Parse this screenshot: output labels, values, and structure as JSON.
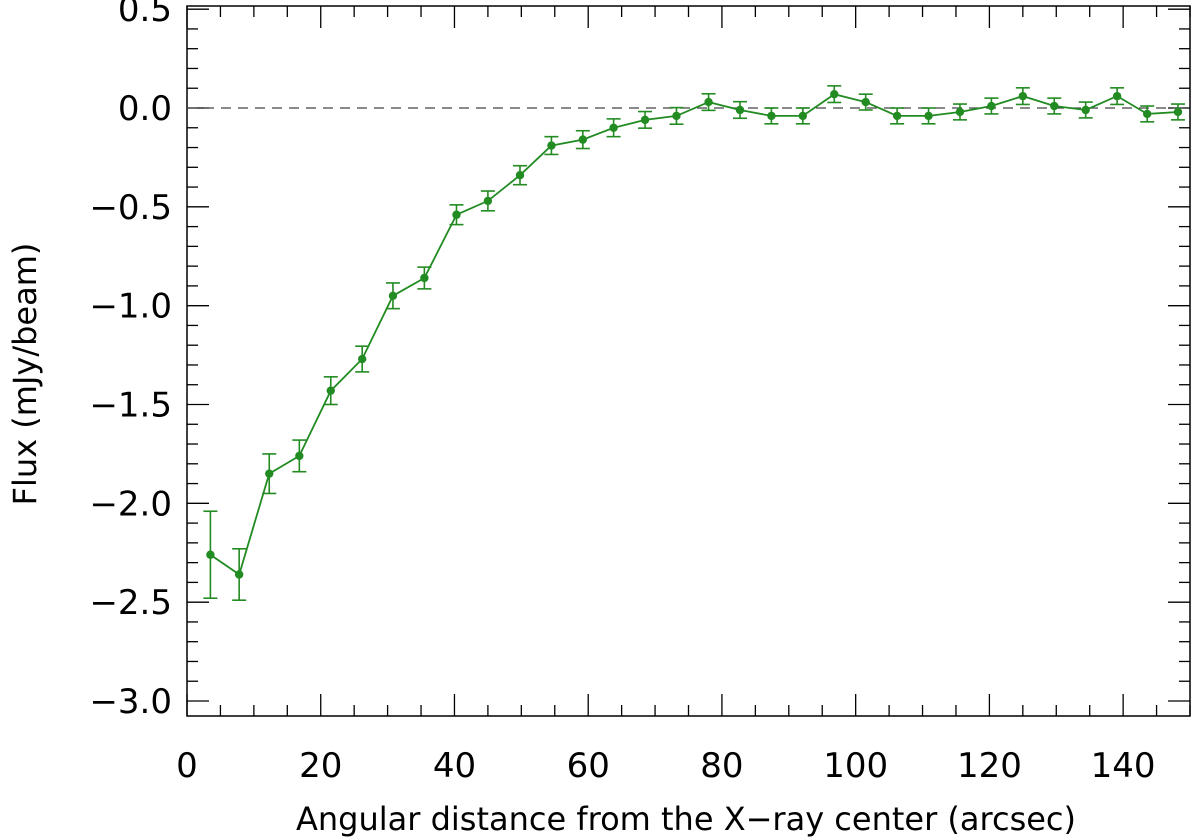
{
  "chart_data": {
    "type": "line",
    "title": "",
    "xlabel": "Angular distance from the X−ray center (arcsec)",
    "ylabel": "Flux (mJy/beam)",
    "xlim": [
      0,
      150
    ],
    "ylim": [
      -3.0,
      0.6
    ],
    "x_ticks": [
      0,
      20,
      40,
      60,
      80,
      100,
      120,
      140
    ],
    "x_tick_labels": [
      "0",
      "20",
      "40",
      "60",
      "80",
      "100",
      "120",
      "140"
    ],
    "y_ticks": [
      0.5,
      0.0,
      -0.5,
      -1.0,
      -1.5,
      -2.0,
      -2.5,
      -3.0
    ],
    "y_tick_labels": [
      "0.5",
      "0.0",
      "−0.5",
      "−1.0",
      "−1.5",
      "−2.0",
      "−2.5",
      "−3.0"
    ],
    "reference_line_y": 0.0,
    "grid": false,
    "series_color": "#228B22",
    "series": [
      {
        "x": [
          3.5,
          7.8,
          12.3,
          16.8,
          21.5,
          26.2,
          30.8,
          35.5,
          40.3,
          45.0,
          49.8,
          54.5,
          59.2,
          63.8,
          68.5,
          73.2,
          78.0,
          82.7,
          87.4,
          92.1,
          96.8,
          101.5,
          106.2,
          110.9,
          115.6,
          120.3,
          125.0,
          129.7,
          134.4,
          139.1,
          143.6,
          148.2
        ],
        "y": [
          -2.26,
          -2.36,
          -1.85,
          -1.76,
          -1.43,
          -1.27,
          -0.95,
          -0.86,
          -0.54,
          -0.47,
          -0.34,
          -0.19,
          -0.16,
          -0.1,
          -0.06,
          -0.04,
          0.03,
          -0.01,
          -0.04,
          -0.04,
          0.07,
          0.03,
          -0.04,
          -0.04,
          -0.02,
          0.01,
          0.06,
          0.01,
          -0.01,
          0.06,
          -0.03,
          -0.02
        ],
        "err": [
          0.22,
          0.13,
          0.1,
          0.08,
          0.07,
          0.065,
          0.065,
          0.055,
          0.05,
          0.05,
          0.048,
          0.045,
          0.045,
          0.045,
          0.042,
          0.042,
          0.042,
          0.042,
          0.04,
          0.04,
          0.042,
          0.04,
          0.04,
          0.04,
          0.04,
          0.04,
          0.042,
          0.04,
          0.04,
          0.042,
          0.04,
          0.04
        ]
      }
    ]
  }
}
